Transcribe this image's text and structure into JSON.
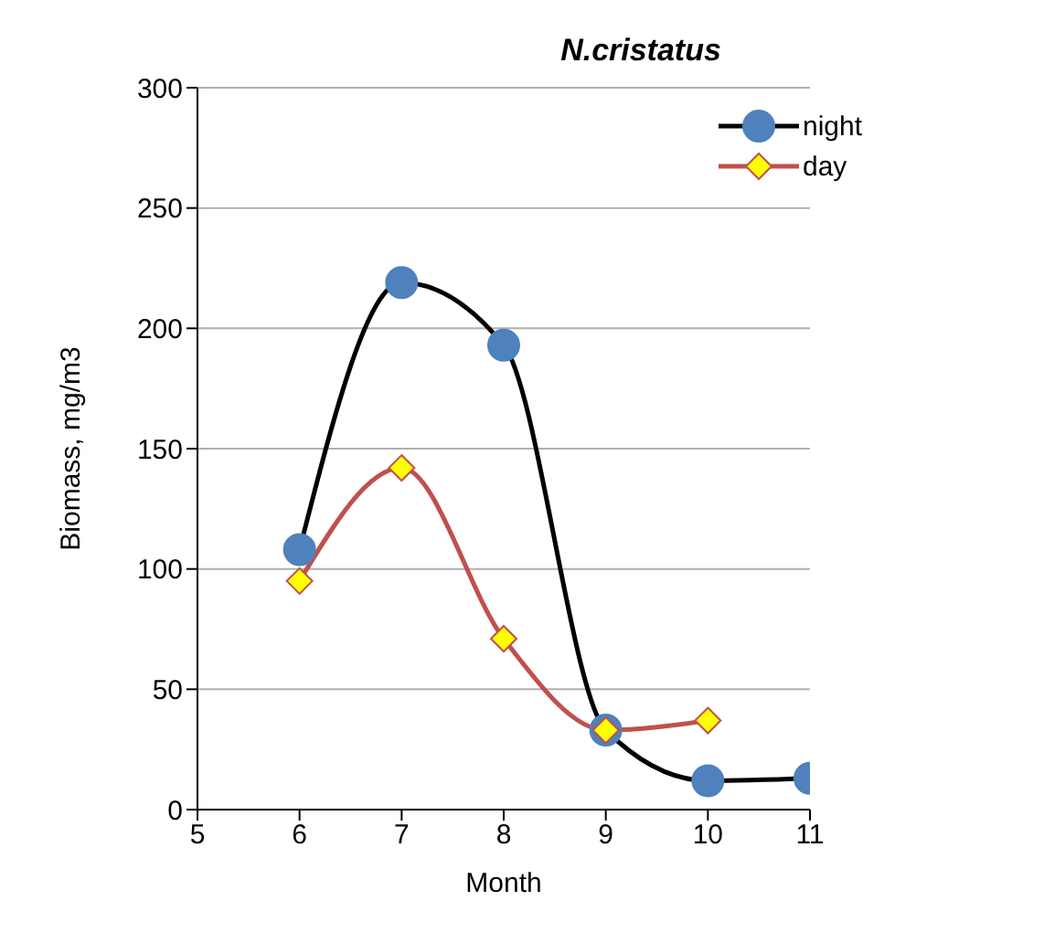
{
  "chart_data": {
    "type": "line",
    "title": "N.cristatus",
    "xlabel": "Month",
    "ylabel": "Biomass, mg/m3",
    "x": [
      6,
      7,
      8,
      9,
      10,
      11
    ],
    "series": [
      {
        "name": "night",
        "color": "#000000",
        "marker": "circle",
        "values": [
          108,
          219,
          193,
          33,
          12,
          13
        ]
      },
      {
        "name": "day",
        "color": "#c0504d",
        "marker": "diamond",
        "values": [
          95,
          142,
          71,
          33,
          37,
          null
        ]
      }
    ],
    "xlim": [
      5,
      11
    ],
    "xticks": [
      5,
      6,
      7,
      8,
      9,
      10,
      11
    ],
    "ylim": [
      0,
      300
    ],
    "yticks": [
      0,
      50,
      100,
      150,
      200,
      250,
      300
    ],
    "grid": "y",
    "legend": "top right"
  }
}
